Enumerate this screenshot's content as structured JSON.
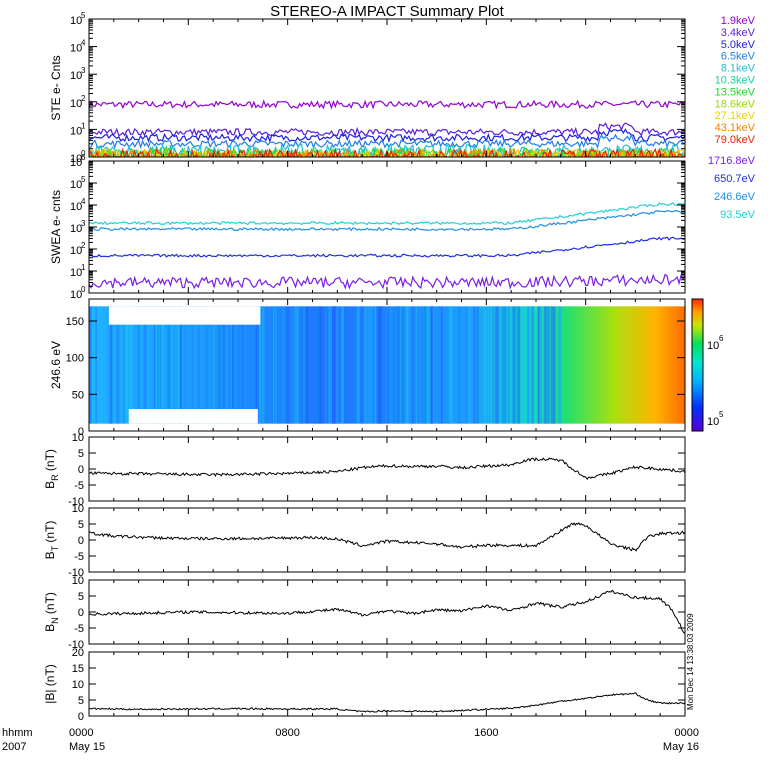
{
  "title": "STEREO-A IMPACT Summary Plot",
  "corner_labels": {
    "top": "hhmm",
    "bottom": "2007"
  },
  "x_axis": {
    "ticks": [
      {
        "hour": 0,
        "top": "0000",
        "bottom": "May 15"
      },
      {
        "hour": 8,
        "top": "0800",
        "bottom": ""
      },
      {
        "hour": 16,
        "top": "1600",
        "bottom": ""
      },
      {
        "hour": 24,
        "top": "0000",
        "bottom": "May 16"
      }
    ],
    "range_hours": [
      0,
      24
    ]
  },
  "side_note": "Mon Dec 14 13:38:03 2009",
  "colors": {
    "background": "#ffffff",
    "foreground": "#000000"
  },
  "chart_data": [
    {
      "id": "ste",
      "type": "line",
      "ylabel": "STE e- Cnts",
      "yscale": "log",
      "ylim_exp": [
        0,
        5
      ],
      "series": [
        {
          "name": "1.9keV",
          "color": "#9400d3",
          "level": 80
        },
        {
          "name": "3.4keV",
          "color": "#5b1fd6",
          "level": 8
        },
        {
          "name": "5.0keV",
          "color": "#1f1fe0",
          "level": 5
        },
        {
          "name": "6.5keV",
          "color": "#1f7fe6",
          "level": 3
        },
        {
          "name": "8.1keV",
          "color": "#20c0d8",
          "level": 1.5
        },
        {
          "name": "10.3keV",
          "color": "#15d2a0",
          "level": 1.2
        },
        {
          "name": "13.5keV",
          "color": "#22d630",
          "level": 1.1
        },
        {
          "name": "18.6keV",
          "color": "#9ad600",
          "level": 1.05
        },
        {
          "name": "27.1keV",
          "color": "#eed000",
          "level": 1.0
        },
        {
          "name": "43.1keV",
          "color": "#ee8800",
          "level": 1.0
        },
        {
          "name": "79.0keV",
          "color": "#ee2200",
          "level": 1.0
        }
      ]
    },
    {
      "id": "swea",
      "type": "line",
      "ylabel": "SWEA e- cnts",
      "yscale": "log",
      "ylim_exp": [
        0,
        6
      ],
      "series": [
        {
          "name": "1716.8eV",
          "color": "#7a1fe6",
          "start": 3,
          "end": 4
        },
        {
          "name": "650.7eV",
          "color": "#1f2fe6",
          "start": 50,
          "end": 300
        },
        {
          "name": "246.6eV",
          "color": "#1f8fe6",
          "start": 800,
          "end": 5000
        },
        {
          "name": "93.5eV",
          "color": "#20d0d0",
          "start": 1500,
          "end": 11000
        }
      ]
    },
    {
      "id": "pad",
      "type": "heatmap",
      "ylabel": "246.6 eV",
      "yticks": [
        "0",
        "50",
        "100",
        "150"
      ],
      "ylim": [
        0,
        180
      ],
      "colorbar": {
        "low": "10^5",
        "high": "10^6"
      }
    },
    {
      "id": "br",
      "type": "line",
      "ylabel": "B",
      "ysub": "R",
      "yunit": " (nT)",
      "ylim": [
        -10,
        10
      ],
      "yticks": [
        "10",
        "5",
        "0",
        "-5",
        "-10"
      ],
      "x": [
        0,
        3,
        5,
        8,
        10,
        11,
        12,
        13,
        14,
        15,
        16,
        17,
        17.5,
        18,
        19,
        20,
        21,
        22,
        23,
        24
      ],
      "values": [
        -1.3,
        -1.6,
        -1.8,
        -1.4,
        -0.8,
        0.4,
        1.0,
        0.8,
        0.9,
        0.4,
        0.9,
        1.3,
        2.6,
        3.1,
        2.8,
        -2.8,
        -1.4,
        0.6,
        0.0,
        -0.8
      ]
    },
    {
      "id": "bt",
      "type": "line",
      "ylabel": "B",
      "ysub": "T",
      "yunit": " (nT)",
      "ylim": [
        -10,
        10
      ],
      "yticks": [
        "10",
        "5",
        "0",
        "-5",
        "-10"
      ],
      "x": [
        0,
        1,
        3,
        5,
        7,
        9,
        10,
        11,
        12,
        14,
        15,
        16,
        18,
        19.5,
        20,
        21,
        22,
        22.5,
        23,
        24
      ],
      "values": [
        2.2,
        1.2,
        0.6,
        0.4,
        0.5,
        0.8,
        0.3,
        -1.8,
        -0.4,
        -1.2,
        -2.3,
        -1.6,
        -1.8,
        5.2,
        4.6,
        -1.2,
        -3.2,
        1.0,
        2.0,
        2.3
      ]
    },
    {
      "id": "bn",
      "type": "line",
      "ylabel": "B",
      "ysub": "N",
      "yunit": " (nT)",
      "ylim": [
        -10,
        10
      ],
      "yticks": [
        "10",
        "5",
        "0",
        "-5",
        "-10"
      ],
      "x": [
        0,
        2,
        4,
        6,
        8,
        10,
        11,
        12,
        13,
        14,
        15,
        16,
        17,
        18,
        19,
        20,
        21,
        22,
        23,
        23.5,
        24
      ],
      "values": [
        -0.7,
        -0.4,
        0.0,
        -0.2,
        -0.4,
        0.8,
        -0.9,
        0.4,
        -0.5,
        0.7,
        0.3,
        2.0,
        0.4,
        2.8,
        1.5,
        3.2,
        6.5,
        4.5,
        4.2,
        0.5,
        -7.0
      ]
    },
    {
      "id": "bmag",
      "type": "line",
      "ylabel": "|B| (nT)",
      "ylim": [
        0,
        20
      ],
      "yticks": [
        "20",
        "15",
        "10",
        "5",
        "0"
      ],
      "x": [
        0,
        2,
        4,
        6,
        8,
        10,
        11,
        12,
        14,
        16,
        17,
        18,
        19,
        20,
        21,
        22,
        22.5,
        23,
        24
      ],
      "values": [
        2.3,
        2.1,
        2.2,
        2.3,
        2.2,
        2.2,
        1.3,
        1.6,
        1.4,
        2.1,
        2.4,
        3.4,
        4.6,
        5.5,
        6.6,
        7.0,
        5.0,
        4.0,
        4.0
      ]
    }
  ]
}
